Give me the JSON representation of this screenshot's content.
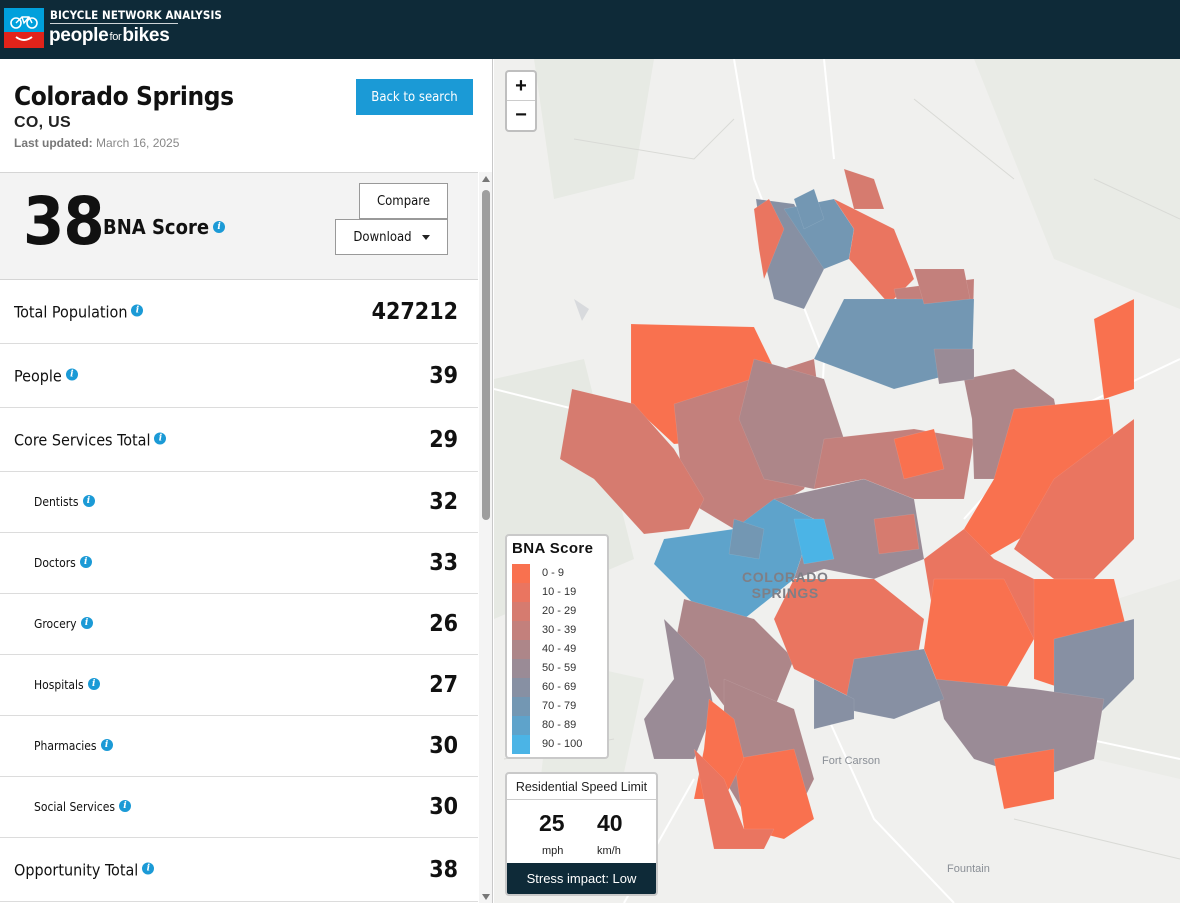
{
  "header": {
    "logo_title": "BICYCLE NETWORK ANALYSIS",
    "logo_word_people": "people",
    "logo_word_for": "for",
    "logo_word_bikes": "bikes",
    "logo_icon": "bicycle-icon"
  },
  "city": {
    "name": "Colorado Springs",
    "region": "CO, US",
    "updated_label": "Last updated:",
    "updated_date": "March 16, 2025"
  },
  "buttons": {
    "back": "Back to search",
    "compare": "Compare",
    "download": "Download"
  },
  "score": {
    "value": "38",
    "label": "BNA Score",
    "info_icon": "info-icon"
  },
  "metrics": [
    {
      "label": "Total Population",
      "value": "427212",
      "level": "main"
    },
    {
      "label": "People",
      "value": "39",
      "level": "main"
    },
    {
      "label": "Core Services Total",
      "value": "29",
      "level": "main"
    },
    {
      "label": "Dentists",
      "value": "32",
      "level": "sub"
    },
    {
      "label": "Doctors",
      "value": "33",
      "level": "sub"
    },
    {
      "label": "Grocery",
      "value": "26",
      "level": "sub"
    },
    {
      "label": "Hospitals",
      "value": "27",
      "level": "sub"
    },
    {
      "label": "Pharmacies",
      "value": "30",
      "level": "sub"
    },
    {
      "label": "Social Services",
      "value": "30",
      "level": "sub"
    },
    {
      "label": "Opportunity Total",
      "value": "38",
      "level": "main"
    }
  ],
  "map": {
    "zoom_in": "+",
    "zoom_out": "−",
    "city_label_line1": "COLORADO",
    "city_label_line2": "SPRINGS",
    "place_fort_carson": "Fort Carson",
    "place_fountain": "Fountain",
    "legend": {
      "title": "BNA Score",
      "items": [
        {
          "range": "0 - 9",
          "color": "#f9714f"
        },
        {
          "range": "10 - 19",
          "color": "#ea7560"
        },
        {
          "range": "20 - 29",
          "color": "#d67b6f"
        },
        {
          "range": "30 - 39",
          "color": "#c3807c"
        },
        {
          "range": "40 - 49",
          "color": "#ad8689"
        },
        {
          "range": "50 - 59",
          "color": "#9a8b96"
        },
        {
          "range": "60 - 69",
          "color": "#8790a3"
        },
        {
          "range": "70 - 79",
          "color": "#7397b3"
        },
        {
          "range": "80 - 89",
          "color": "#5ea3cb"
        },
        {
          "range": "90 - 100",
          "color": "#4bb4e6"
        }
      ]
    },
    "speed": {
      "title": "Residential Speed Limit",
      "mph_value": "25",
      "mph_unit": "mph",
      "kmh_value": "40",
      "kmh_unit": "km/h",
      "impact": "Stress impact: Low"
    }
  },
  "colors": {
    "header_bg": "#0e2a38",
    "accent_blue": "#1b9ad6",
    "logo_red": "#e2231a"
  }
}
